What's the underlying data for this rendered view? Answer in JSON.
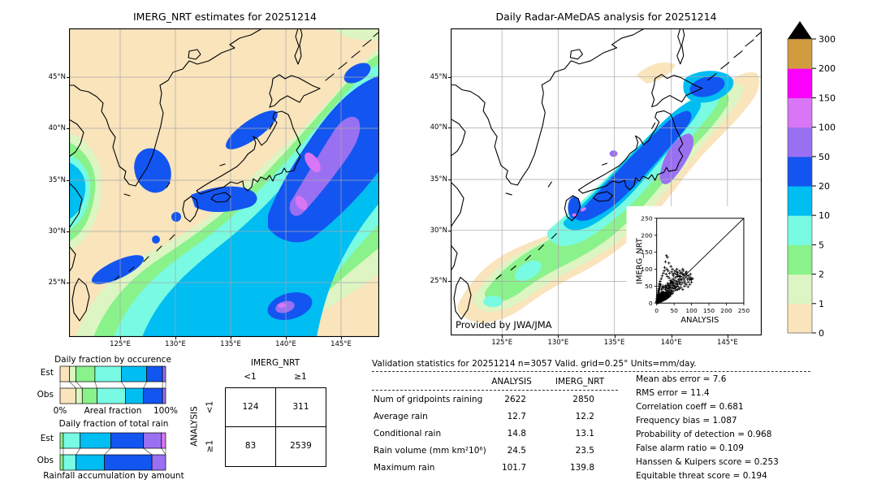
{
  "palette": {
    "background": "#ffffff",
    "map_land_dry": "#f9e4bc",
    "coastline": "#000000",
    "grid": "#a8a8a8",
    "levels_mm_day": [
      0,
      1,
      2,
      5,
      10,
      20,
      50,
      100,
      150,
      200,
      300
    ],
    "level_colors": [
      "#f9e4bc",
      "#dcf5c2",
      "#8af28a",
      "#78fbe2",
      "#00bdf2",
      "#1355f0",
      "#9a70f2",
      "#d876f5",
      "#fb00fb",
      "#d09c3e"
    ],
    "over_color": "#000000"
  },
  "chart_data": [
    {
      "type": "heatmap",
      "subtype": "precipitation-map",
      "title": "IMERG_NRT estimates for 20251214",
      "x_ticks": [
        "125°E",
        "130°E",
        "135°E",
        "140°E",
        "145°E"
      ],
      "y_ticks": [
        "45°N",
        "40°N",
        "35°N",
        "30°N",
        "25°N"
      ],
      "units": "mm/day",
      "colorscale_levels": [
        0,
        1,
        2,
        5,
        10,
        20,
        50,
        100,
        150,
        200,
        300
      ],
      "description": "Satellite precipitation estimates: broad SW-NE rain band over Japan, >50 mm/day purple core east of Honshu, secondary cells near Taiwan and south of 28N"
    },
    {
      "type": "heatmap",
      "subtype": "precipitation-map",
      "title": "Daily Radar-AMeDAS analysis for 20251214",
      "x_ticks": [
        "125°E",
        "130°E",
        "135°E",
        "140°E",
        "145°E"
      ],
      "y_ticks": [
        "45°N",
        "40°N",
        "35°N",
        "30°N",
        "25°N"
      ],
      "units": "mm/day",
      "annotation": "Provided by JWA/JMA",
      "colorscale_levels": [
        0,
        1,
        2,
        5,
        10,
        20,
        50,
        100,
        150,
        200,
        300
      ],
      "description": "Radar-gauge analysis confined to radar coverage band along Japan: blue 20-50 core over Honshu/Kyushu, 50-100 purple patch along Pacific coast of northern Honshu, green/tan fringe toward Okinawa"
    },
    {
      "type": "colorbar",
      "orientation": "vertical",
      "levels_bottom_to_top": [
        "0",
        "1",
        "2",
        "5",
        "10",
        "20",
        "50",
        "100",
        "150",
        "200",
        "300"
      ],
      "colors_bottom_to_top": [
        "#f9e4bc",
        "#dcf5c2",
        "#8af28a",
        "#78fbe2",
        "#00bdf2",
        "#1355f0",
        "#9a70f2",
        "#d876f5",
        "#fb00fb",
        "#d09c3e"
      ],
      "over_color": "#000000",
      "units": "mm/day"
    },
    {
      "type": "bar",
      "subtype": "stacked-fraction",
      "title": "Daily fraction by occurence",
      "categories": [
        "Est",
        "Obs"
      ],
      "xlabel": "Areal fraction",
      "x_min_label": "0%",
      "x_max_label": "100%",
      "bins_mm_day": [
        "0-1",
        "1-2",
        "2-5",
        "5-10",
        "10-20",
        "20-50",
        "50-100"
      ],
      "colors": [
        "#f9e4bc",
        "#dcf5c2",
        "#8af28a",
        "#78fbe2",
        "#00bdf2",
        "#1355f0",
        "#9a70f2"
      ],
      "series_percent": {
        "Est": [
          9,
          6,
          18,
          25,
          24,
          15,
          3
        ],
        "Obs": [
          15,
          6,
          14,
          27,
          17,
          18,
          3
        ]
      }
    },
    {
      "type": "bar",
      "subtype": "stacked-fraction",
      "title": "Daily fraction of total rain",
      "caption": "Rainfall accumulation by amount",
      "categories": [
        "Est",
        "Obs"
      ],
      "bins_mm_day": [
        "2-5",
        "5-10",
        "10-20",
        "20-50",
        "50-100",
        "100-150"
      ],
      "colors": [
        "#8af28a",
        "#78fbe2",
        "#00bdf2",
        "#1355f0",
        "#9a70f2",
        "#d876f5"
      ],
      "series_percent": {
        "Est": [
          3,
          16,
          29,
          31,
          17,
          4
        ],
        "Obs": [
          3,
          12,
          27,
          45,
          13,
          0
        ]
      }
    },
    {
      "type": "table",
      "subtype": "contingency",
      "col_header": "IMERG_NRT",
      "row_header": "ANALYSIS",
      "col_labels": [
        "<1",
        "≥1"
      ],
      "row_labels": [
        "<1",
        "≥1"
      ],
      "values": [
        [
          "124",
          "311"
        ],
        [
          "83",
          "2539"
        ]
      ]
    },
    {
      "type": "table",
      "subtype": "validation-statistics",
      "title": "Validation statistics for 20251214  n=3057 Valid. grid=0.25° Units=mm/day.",
      "columns": [
        "ANALYSIS",
        "IMERG_NRT"
      ],
      "rows": [
        {
          "label": "Num of gridpoints raining",
          "analysis": "2622",
          "imerg": "2850"
        },
        {
          "label": "Average rain",
          "analysis": "12.7",
          "imerg": "12.2"
        },
        {
          "label": "Conditional rain",
          "analysis": "14.8",
          "imerg": "13.1"
        },
        {
          "label": "Rain volume (mm km²10⁶)",
          "analysis": "24.5",
          "imerg": "23.5"
        },
        {
          "label": "Maximum rain",
          "analysis": "101.7",
          "imerg": "139.8"
        }
      ],
      "scores": [
        {
          "label": "Mean abs error",
          "value": "7.6"
        },
        {
          "label": "RMS error",
          "value": "11.4"
        },
        {
          "label": "Correlation coeff",
          "value": "0.681"
        },
        {
          "label": "Frequency bias",
          "value": "1.087"
        },
        {
          "label": "Probability of detection",
          "value": "0.968"
        },
        {
          "label": "False alarm ratio",
          "value": "0.109"
        },
        {
          "label": "Hanssen & Kuipers score",
          "value": "0.253"
        },
        {
          "label": "Equitable threat score",
          "value": "0.194"
        }
      ]
    },
    {
      "type": "scatter",
      "xlabel": "ANALYSIS",
      "ylabel": "IMERG_NRT",
      "xlim": [
        0,
        250
      ],
      "ylim": [
        0,
        250
      ],
      "ticks": [
        0,
        50,
        100,
        150,
        200,
        250
      ],
      "ref_line": "y=x",
      "marker": "+",
      "points": [
        [
          1,
          1
        ],
        [
          1,
          3
        ],
        [
          2,
          2
        ],
        [
          2,
          5
        ],
        [
          2,
          9
        ],
        [
          3,
          1
        ],
        [
          3,
          4
        ],
        [
          3,
          7
        ],
        [
          3,
          12
        ],
        [
          4,
          3
        ],
        [
          4,
          6
        ],
        [
          4,
          10
        ],
        [
          4,
          15
        ],
        [
          5,
          2
        ],
        [
          5,
          5
        ],
        [
          5,
          9
        ],
        [
          5,
          14
        ],
        [
          5,
          19
        ],
        [
          6,
          4
        ],
        [
          6,
          7
        ],
        [
          6,
          11
        ],
        [
          6,
          17
        ],
        [
          7,
          3
        ],
        [
          7,
          6
        ],
        [
          7,
          10
        ],
        [
          7,
          15
        ],
        [
          7,
          21
        ],
        [
          8,
          5
        ],
        [
          8,
          8
        ],
        [
          8,
          13
        ],
        [
          8,
          19
        ],
        [
          9,
          4
        ],
        [
          9,
          7
        ],
        [
          9,
          12
        ],
        [
          9,
          18
        ],
        [
          9,
          24
        ],
        [
          10,
          6
        ],
        [
          10,
          9
        ],
        [
          10,
          14
        ],
        [
          10,
          21
        ],
        [
          11,
          5
        ],
        [
          11,
          8
        ],
        [
          11,
          13
        ],
        [
          11,
          19
        ],
        [
          11,
          27
        ],
        [
          12,
          7
        ],
        [
          12,
          10
        ],
        [
          12,
          16
        ],
        [
          12,
          23
        ],
        [
          13,
          6
        ],
        [
          13,
          9
        ],
        [
          13,
          14
        ],
        [
          13,
          20
        ],
        [
          13,
          29
        ],
        [
          14,
          8
        ],
        [
          14,
          12
        ],
        [
          14,
          18
        ],
        [
          14,
          25
        ],
        [
          15,
          7
        ],
        [
          15,
          10
        ],
        [
          15,
          16
        ],
        [
          15,
          22
        ],
        [
          15,
          31
        ],
        [
          16,
          9
        ],
        [
          16,
          13
        ],
        [
          16,
          19
        ],
        [
          16,
          27
        ],
        [
          17,
          8
        ],
        [
          17,
          11
        ],
        [
          17,
          17
        ],
        [
          17,
          24
        ],
        [
          17,
          34
        ],
        [
          18,
          10
        ],
        [
          18,
          14
        ],
        [
          18,
          20
        ],
        [
          18,
          29
        ],
        [
          19,
          9
        ],
        [
          19,
          12
        ],
        [
          19,
          18
        ],
        [
          19,
          26
        ],
        [
          20,
          11
        ],
        [
          20,
          15
        ],
        [
          20,
          22
        ],
        [
          20,
          32
        ],
        [
          21,
          10
        ],
        [
          21,
          16
        ],
        [
          21,
          24
        ],
        [
          22,
          12
        ],
        [
          22,
          18
        ],
        [
          22,
          28
        ],
        [
          23,
          11
        ],
        [
          23,
          17
        ],
        [
          23,
          26
        ],
        [
          24,
          13
        ],
        [
          24,
          20
        ],
        [
          24,
          31
        ],
        [
          25,
          12
        ],
        [
          25,
          18
        ],
        [
          25,
          28
        ],
        [
          25,
          40
        ],
        [
          26,
          14
        ],
        [
          26,
          22
        ],
        [
          27,
          13
        ],
        [
          27,
          19
        ],
        [
          27,
          30
        ],
        [
          28,
          15
        ],
        [
          28,
          24
        ],
        [
          28,
          38
        ],
        [
          29,
          14
        ],
        [
          29,
          21
        ],
        [
          29,
          33
        ],
        [
          30,
          16
        ],
        [
          30,
          25
        ],
        [
          30,
          45
        ],
        [
          31,
          18
        ],
        [
          31,
          28
        ],
        [
          32,
          20
        ],
        [
          32,
          36
        ],
        [
          33,
          17
        ],
        [
          33,
          26
        ],
        [
          34,
          22
        ],
        [
          34,
          42
        ],
        [
          35,
          19
        ],
        [
          35,
          30
        ],
        [
          35,
          55
        ],
        [
          36,
          24
        ],
        [
          37,
          33
        ],
        [
          38,
          21
        ],
        [
          38,
          48
        ],
        [
          39,
          28
        ],
        [
          40,
          25
        ],
        [
          40,
          38
        ],
        [
          41,
          52
        ],
        [
          42,
          30
        ],
        [
          43,
          62
        ],
        [
          44,
          36
        ],
        [
          45,
          28
        ],
        [
          45,
          70
        ],
        [
          46,
          44
        ],
        [
          47,
          55
        ],
        [
          48,
          34
        ],
        [
          48,
          80
        ],
        [
          49,
          60
        ],
        [
          50,
          42
        ],
        [
          50,
          88
        ],
        [
          51,
          50
        ],
        [
          52,
          66
        ],
        [
          53,
          45
        ],
        [
          54,
          75
        ],
        [
          55,
          38
        ],
        [
          55,
          58
        ],
        [
          56,
          85
        ],
        [
          57,
          50
        ],
        [
          58,
          64
        ],
        [
          59,
          78
        ],
        [
          60,
          55
        ],
        [
          60,
          90
        ],
        [
          62,
          68
        ],
        [
          63,
          48
        ],
        [
          64,
          80
        ],
        [
          65,
          58
        ],
        [
          66,
          72
        ],
        [
          68,
          62
        ],
        [
          68,
          88
        ],
        [
          70,
          55
        ],
        [
          70,
          78
        ],
        [
          72,
          68
        ],
        [
          74,
          85
        ],
        [
          75,
          60
        ],
        [
          76,
          95
        ],
        [
          78,
          72
        ],
        [
          80,
          65
        ],
        [
          80,
          82
        ],
        [
          82,
          58
        ],
        [
          84,
          76
        ],
        [
          85,
          92
        ],
        [
          88,
          70
        ],
        [
          90,
          62
        ],
        [
          92,
          80
        ],
        [
          95,
          68
        ],
        [
          98,
          75
        ],
        [
          100,
          62
        ],
        [
          103,
          72
        ],
        [
          28,
          140
        ],
        [
          31,
          135
        ],
        [
          25,
          122
        ],
        [
          35,
          118
        ],
        [
          41,
          108
        ],
        [
          29,
          100
        ],
        [
          22,
          95
        ],
        [
          19,
          88
        ],
        [
          16,
          80
        ],
        [
          13,
          72
        ],
        [
          10,
          64
        ],
        [
          8,
          57
        ],
        [
          6,
          50
        ],
        [
          12,
          55
        ],
        [
          45,
          100
        ],
        [
          52,
          95
        ],
        [
          58,
          100
        ],
        [
          66,
          95
        ],
        [
          75,
          100
        ],
        [
          23,
          105
        ],
        [
          33,
          95
        ],
        [
          37,
          88
        ],
        [
          43,
          92
        ],
        [
          47,
          85
        ],
        [
          27,
          85
        ],
        [
          31,
          78
        ],
        [
          36,
          74
        ],
        [
          39,
          66
        ],
        [
          44,
          58
        ],
        [
          49,
          70
        ],
        [
          57,
          92
        ],
        [
          61,
          84
        ],
        [
          67,
          78
        ],
        [
          71,
          90
        ],
        [
          77,
          84
        ],
        [
          83,
          88
        ],
        [
          87,
          82
        ],
        [
          93,
          74
        ],
        [
          97,
          85
        ],
        [
          14,
          40
        ],
        [
          16,
          45
        ],
        [
          18,
          50
        ],
        [
          21,
          44
        ],
        [
          24,
          48
        ],
        [
          26,
          52
        ],
        [
          28,
          46
        ],
        [
          30,
          52
        ],
        [
          32,
          58
        ],
        [
          34,
          50
        ],
        [
          36,
          44
        ],
        [
          38,
          55
        ],
        [
          40,
          60
        ],
        [
          42,
          46
        ],
        [
          44,
          64
        ],
        [
          46,
          52
        ],
        [
          2,
          14
        ],
        [
          3,
          18
        ],
        [
          4,
          22
        ],
        [
          5,
          26
        ],
        [
          6,
          30
        ],
        [
          7,
          35
        ],
        [
          8,
          40
        ],
        [
          9,
          45
        ],
        [
          10,
          50
        ],
        [
          1,
          6
        ],
        [
          2,
          18
        ],
        [
          3,
          24
        ],
        [
          4,
          30
        ],
        [
          5,
          36
        ],
        [
          6,
          42
        ],
        [
          1,
          10
        ],
        [
          0,
          2
        ],
        [
          0,
          5
        ],
        [
          1,
          14
        ],
        [
          2,
          22
        ],
        [
          55,
          45
        ],
        [
          60,
          40
        ],
        [
          65,
          42
        ],
        [
          70,
          46
        ],
        [
          75,
          40
        ],
        [
          80,
          50
        ],
        [
          85,
          55
        ],
        [
          90,
          48
        ],
        [
          95,
          55
        ],
        [
          100,
          70
        ]
      ]
    }
  ]
}
